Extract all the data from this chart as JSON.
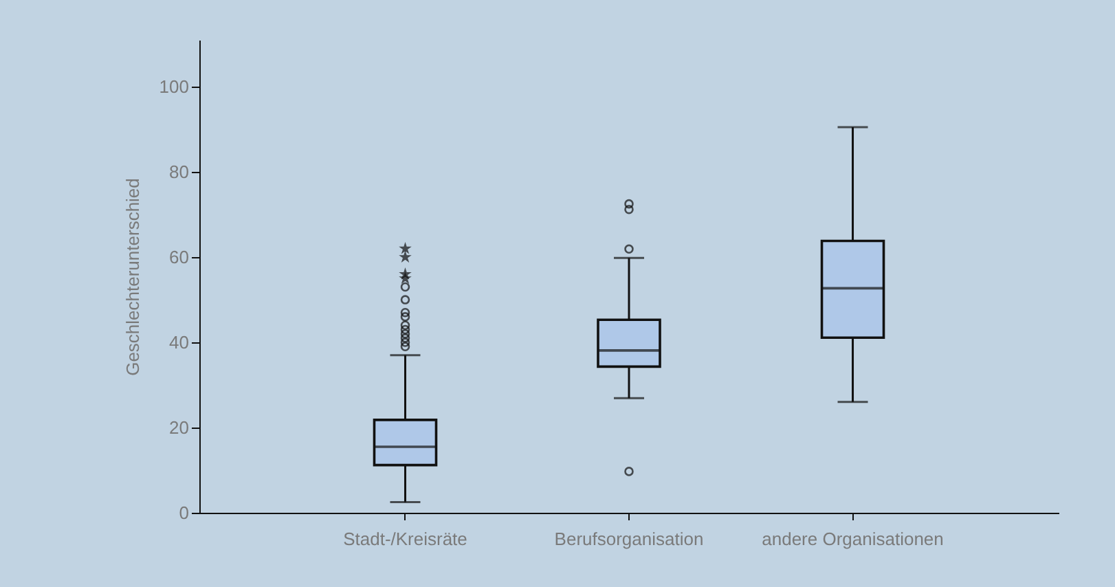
{
  "chart_data": {
    "type": "box",
    "ylabel": "Geschlechterunterschied",
    "categories": [
      "Stadt-/Kreisräte",
      "Berufsorganisation",
      "andere Organisationen"
    ],
    "boxes": [
      {
        "low": 2.5,
        "q1": 11.2,
        "median": 15.5,
        "q3": 21.8,
        "high": 37,
        "outliers": [
          39,
          40,
          41,
          42,
          43,
          44,
          46,
          47,
          50,
          53,
          55,
          56,
          60,
          62
        ]
      },
      {
        "low": 26.9,
        "q1": 34.3,
        "median": 38.1,
        "q3": 45.3,
        "high": 59.8,
        "outliers": [
          9.7,
          61.9,
          71.2,
          72.5
        ]
      },
      {
        "low": 26,
        "q1": 41.1,
        "median": 52.7,
        "q3": 63.8,
        "high": 90.5
      }
    ],
    "color": "#afc8e8",
    "ylim": [
      0,
      111
    ],
    "yticks": [
      0,
      20,
      40,
      60,
      80,
      100
    ],
    "grid": false,
    "marker": "circle"
  }
}
